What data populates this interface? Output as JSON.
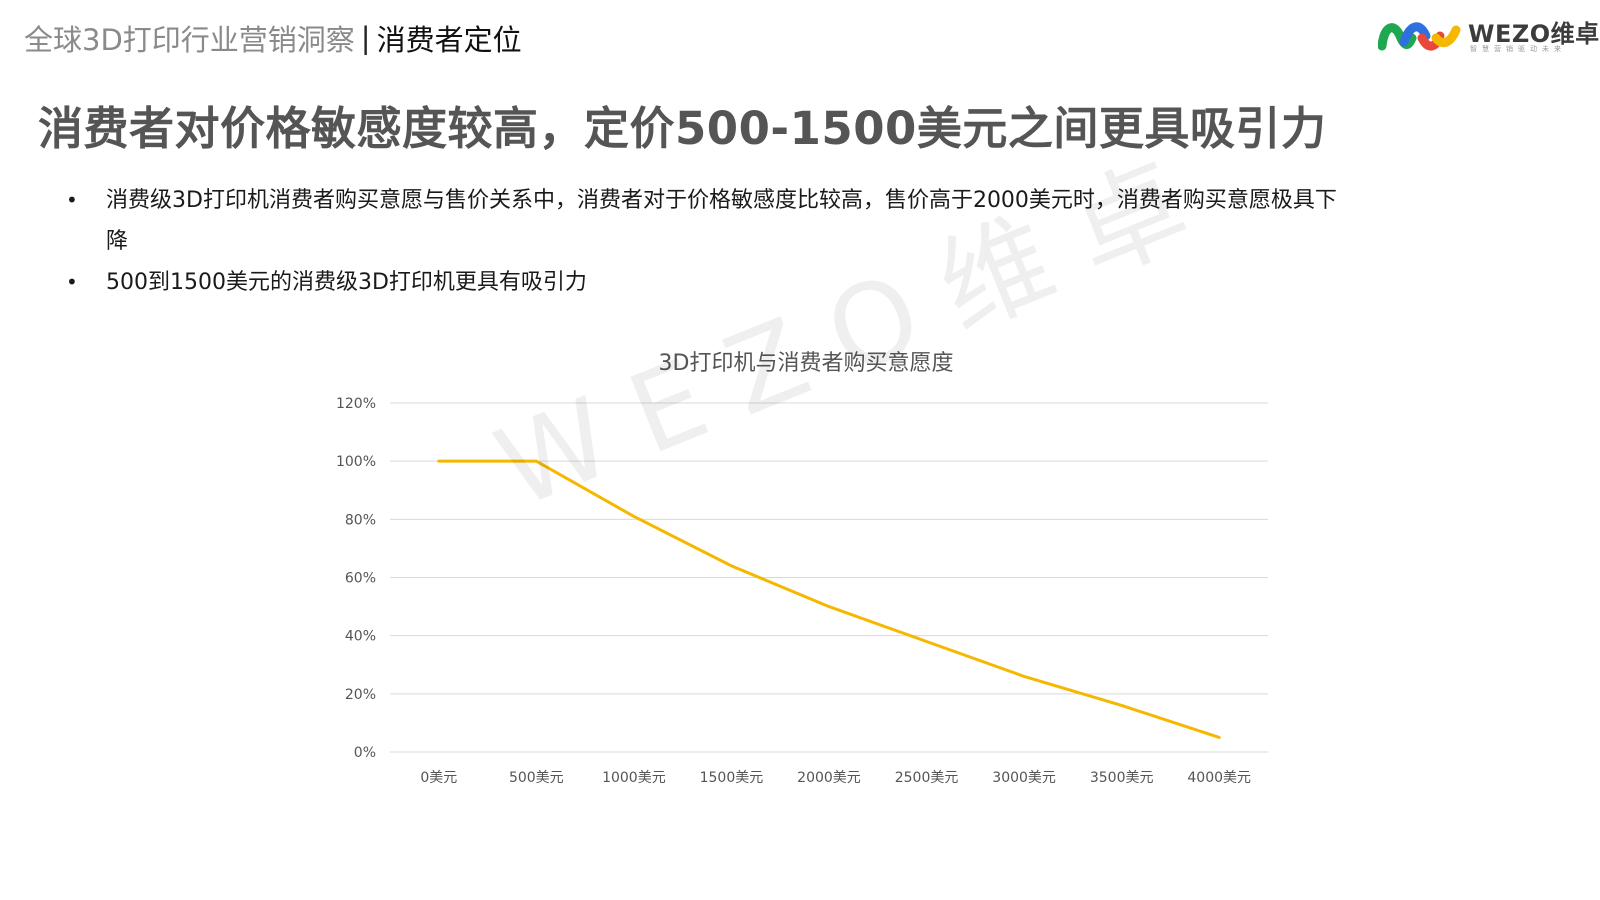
{
  "header": {
    "topic": "全球3D打印行业营销洞察",
    "separator": "|",
    "section": "消费者定位"
  },
  "logo": {
    "brand": "WEZO维卓",
    "tagline": "智慧营销驱动未来"
  },
  "headline": "消费者对价格敏感度较高，定价500-1500美元之间更具吸引力",
  "bullets": [
    "消费级3D打印机消费者购买意愿与售价关系中，消费者对于价格敏感度比较高，售价高于2000美元时，消费者购买意愿极具下降",
    "500到1500美元的消费级3D打印机更具有吸引力"
  ],
  "watermark": "WEZO维卓",
  "colors": {
    "line": "#F5B800",
    "gridline": "#D9D9D9",
    "headline": "#555555"
  },
  "chart_data": {
    "type": "line",
    "title": "3D打印机与消费者购买意愿度",
    "categories": [
      "0美元",
      "500美元",
      "1000美元",
      "1500美元",
      "2000美元",
      "2500美元",
      "3000美元",
      "3500美元",
      "4000美元"
    ],
    "series": [
      {
        "values": [
          100,
          100,
          81,
          64,
          50,
          38,
          26,
          16,
          5
        ]
      }
    ],
    "y_ticks": [
      "0%",
      "20%",
      "40%",
      "60%",
      "80%",
      "100%",
      "120%"
    ],
    "ylim": [
      0,
      120
    ],
    "grid": true,
    "legend": "none"
  }
}
